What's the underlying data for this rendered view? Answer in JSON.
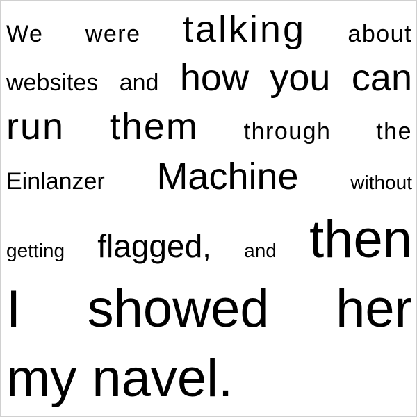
{
  "document": {
    "lines": [
      [
        "We",
        "were",
        "talking",
        "about"
      ],
      [
        "websites",
        "and",
        "how",
        "you",
        "can"
      ],
      [
        "run",
        "them",
        "through",
        "the"
      ],
      [
        "Einlanzer",
        "Machine",
        "without"
      ],
      [
        "getting",
        "flagged,",
        "and",
        "then"
      ],
      [
        "I",
        "showed",
        "her"
      ],
      [
        "my",
        "navel."
      ]
    ]
  }
}
